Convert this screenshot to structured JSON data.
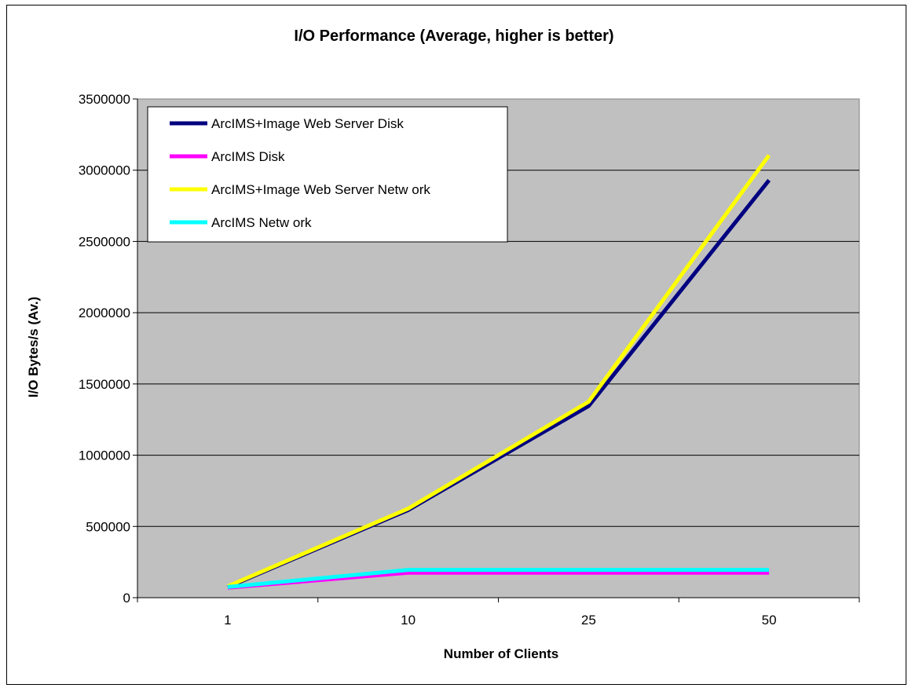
{
  "chart_data": {
    "type": "line",
    "title": "I/O Performance (Average, higher is better)",
    "xlabel": "Number of Clients",
    "ylabel": "I/O Bytes/s (Av.)",
    "categories": [
      "1",
      "10",
      "25",
      "50"
    ],
    "ylim": [
      0,
      3500000
    ],
    "yticks": [
      0,
      500000,
      1000000,
      1500000,
      2000000,
      2500000,
      3000000,
      3500000
    ],
    "grid": true,
    "legend_position": "top-left",
    "plot_background": "#c0c0c0",
    "series": [
      {
        "name": "ArcIMS+Image Web Server Disk",
        "color": "#000080",
        "values": [
          75000,
          615000,
          1345000,
          2930000
        ]
      },
      {
        "name": "ArcIMS Disk",
        "color": "#ff00ff",
        "values": [
          70000,
          175000,
          175000,
          175000
        ]
      },
      {
        "name": "ArcIMS+Image Web Server Netw ork",
        "color": "#ffff00",
        "values": [
          80000,
          625000,
          1375000,
          3105000
        ]
      },
      {
        "name": "ArcIMS Netw ork",
        "color": "#00ffff",
        "values": [
          75000,
          195000,
          195000,
          195000
        ]
      }
    ]
  }
}
